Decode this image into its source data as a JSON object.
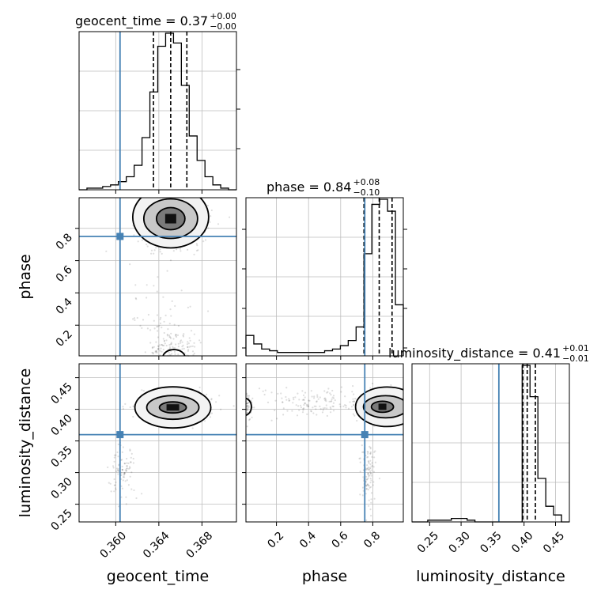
{
  "chart_data": {
    "type": "corner",
    "parameters": [
      "geocent_time",
      "phase",
      "luminosity_distance"
    ],
    "truths": {
      "geocent_time": 0.3604,
      "phase": 0.75,
      "luminosity_distance": 0.36
    },
    "titles": [
      {
        "param": "geocent_time",
        "text": "geocent_time = 0.37",
        "plus": "+0.00",
        "minus": "−0.00"
      },
      {
        "param": "phase",
        "text": "phase = 0.84",
        "plus": "+0.08",
        "minus": "−0.10"
      },
      {
        "param": "luminosity_distance",
        "text": "luminosity_distance = 0.41",
        "plus": "+0.01",
        "minus": "−0.01"
      }
    ],
    "axis_labels": {
      "x": [
        "geocent_time",
        "phase",
        "luminosity_distance"
      ],
      "y": [
        "phase",
        "luminosity_distance"
      ]
    },
    "ranges": {
      "geocent_time": [
        0.3566,
        0.3712
      ],
      "phase": [
        0.01,
        0.99
      ],
      "luminosity_distance": [
        0.222,
        0.472
      ]
    },
    "tick_labels": {
      "geocent_time": [
        "0.360",
        "0.364",
        "0.368"
      ],
      "phase_x": [
        "0.2",
        "0.4",
        "0.6",
        "0.8"
      ],
      "phase_y": [
        "0.2",
        "0.4",
        "0.6",
        "0.8"
      ],
      "luminosity_distance_x": [
        "0.25",
        "0.30",
        "0.35",
        "0.40",
        "0.45"
      ],
      "luminosity_distance_y": [
        "0.25",
        "0.30",
        "0.35",
        "0.40",
        "0.45"
      ]
    },
    "histograms": {
      "geocent_time": {
        "edges": [
          0.3566,
          0.35733,
          0.35806,
          0.35879,
          0.35952,
          0.36025,
          0.36098,
          0.36171,
          0.36244,
          0.36317,
          0.3639,
          0.36463,
          0.36536,
          0.36609,
          0.36682,
          0.36755,
          0.36828,
          0.36901,
          0.36974,
          0.37047,
          0.3712
        ],
        "counts": [
          0,
          1,
          1,
          2,
          3,
          5,
          8,
          15,
          32,
          60,
          88,
          96,
          90,
          64,
          33,
          18,
          8,
          3,
          1,
          0
        ],
        "quantiles": [
          0.3635,
          0.3651,
          0.3666
        ]
      },
      "phase": {
        "edges": [
          0.01,
          0.059,
          0.108,
          0.157,
          0.206,
          0.255,
          0.304,
          0.353,
          0.402,
          0.451,
          0.5,
          0.549,
          0.598,
          0.647,
          0.696,
          0.745,
          0.794,
          0.843,
          0.892,
          0.941,
          0.99
        ],
        "counts": [
          12,
          7,
          4,
          3,
          2,
          2,
          2,
          2,
          2,
          2,
          3,
          4,
          6,
          9,
          17,
          60,
          89,
          92,
          85,
          30
        ],
        "quantiles": [
          0.745,
          0.84,
          0.92
        ]
      },
      "luminosity_distance": {
        "edges": [
          0.222,
          0.2345,
          0.247,
          0.2595,
          0.272,
          0.2845,
          0.297,
          0.3095,
          0.322,
          0.3345,
          0.347,
          0.3595,
          0.372,
          0.3845,
          0.397,
          0.4095,
          0.422,
          0.4345,
          0.447,
          0.4595,
          0.472
        ],
        "counts": [
          0,
          0,
          1,
          1,
          1,
          2,
          2,
          1,
          0,
          0,
          0,
          0,
          0,
          0,
          90,
          72,
          25,
          9,
          4,
          0
        ],
        "quantiles": [
          0.398,
          0.405,
          0.418
        ]
      }
    },
    "grid": true,
    "truth_color": "#4682b4"
  }
}
